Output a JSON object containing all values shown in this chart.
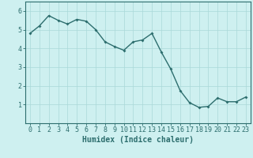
{
  "x": [
    0,
    1,
    2,
    3,
    4,
    5,
    6,
    7,
    8,
    9,
    10,
    11,
    12,
    13,
    14,
    15,
    16,
    17,
    18,
    19,
    20,
    21,
    22,
    23
  ],
  "y": [
    4.8,
    5.2,
    5.75,
    5.5,
    5.3,
    5.55,
    5.45,
    5.0,
    4.35,
    4.1,
    3.9,
    4.35,
    4.45,
    4.8,
    3.8,
    2.9,
    1.75,
    1.1,
    0.85,
    0.9,
    1.35,
    1.15,
    1.15,
    1.4
  ],
  "line_color": "#2d6e6e",
  "marker": "D",
  "marker_size": 2,
  "background_color": "#cef0f0",
  "grid_color": "#aad8d8",
  "axis_color": "#2d6e6e",
  "xlabel": "Humidex (Indice chaleur)",
  "xlabel_fontsize": 7,
  "xlim": [
    -0.5,
    23.5
  ],
  "ylim": [
    0,
    6.5
  ],
  "yticks": [
    1,
    2,
    3,
    4,
    5,
    6
  ],
  "xticks": [
    0,
    1,
    2,
    3,
    4,
    5,
    6,
    7,
    8,
    9,
    10,
    11,
    12,
    13,
    14,
    15,
    16,
    17,
    18,
    19,
    20,
    21,
    22,
    23
  ],
  "tick_fontsize": 6,
  "linewidth": 1.0
}
